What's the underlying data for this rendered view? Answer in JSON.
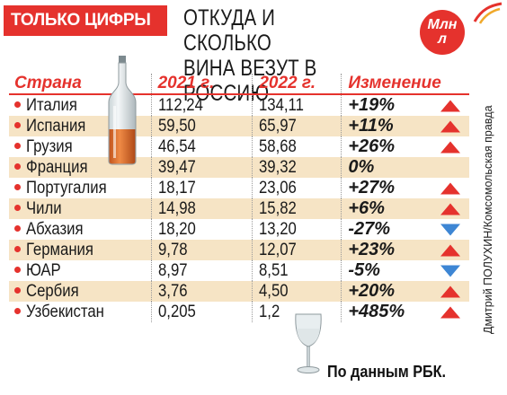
{
  "header": {
    "badge": "ТОЛЬКО ЦИФРЫ",
    "title_line1": "ОТКУДА И СКОЛЬКО",
    "title_line2": "ВИНА ВЕЗУТ В РОССИЮ",
    "unit_line1": "Млн",
    "unit_line2": "л"
  },
  "credit": "Дмитрий ПОЛУХИН/Комсомольская правда",
  "source": "По данным РБК.",
  "colors": {
    "accent": "#e5322d",
    "down": "#3d86d4",
    "stripe": "#f6e4c5"
  },
  "chart_data": {
    "type": "table",
    "columns": [
      "Страна",
      "2021 г.",
      "2022 г.",
      "Изменение"
    ],
    "rows": [
      {
        "country": "Италия",
        "y2021": "112,24",
        "y2022": "134,11",
        "change": "+19%",
        "trend": "up"
      },
      {
        "country": "Испания",
        "y2021": "59,50",
        "y2022": "65,97",
        "change": "+11%",
        "trend": "up"
      },
      {
        "country": "Грузия",
        "y2021": "46,54",
        "y2022": "58,68",
        "change": "+26%",
        "trend": "up"
      },
      {
        "country": "Франция",
        "y2021": "39,47",
        "y2022": "39,32",
        "change": "0%",
        "trend": "none"
      },
      {
        "country": "Португалия",
        "y2021": "18,17",
        "y2022": "23,06",
        "change": "+27%",
        "trend": "up"
      },
      {
        "country": "Чили",
        "y2021": "14,98",
        "y2022": "15,82",
        "change": "+6%",
        "trend": "up"
      },
      {
        "country": "Абхазия",
        "y2021": "18,20",
        "y2022": "13,20",
        "change": "-27%",
        "trend": "down"
      },
      {
        "country": "Германия",
        "y2021": "9,78",
        "y2022": "12,07",
        "change": "+23%",
        "trend": "up"
      },
      {
        "country": "ЮАР",
        "y2021": "8,97",
        "y2022": "8,51",
        "change": "-5%",
        "trend": "down"
      },
      {
        "country": "Сербия",
        "y2021": "3,76",
        "y2022": "4,50",
        "change": "+20%",
        "trend": "up"
      },
      {
        "country": "Узбекистан",
        "y2021": "0,205",
        "y2022": "1,2",
        "change": "+485%",
        "trend": "up"
      }
    ]
  }
}
